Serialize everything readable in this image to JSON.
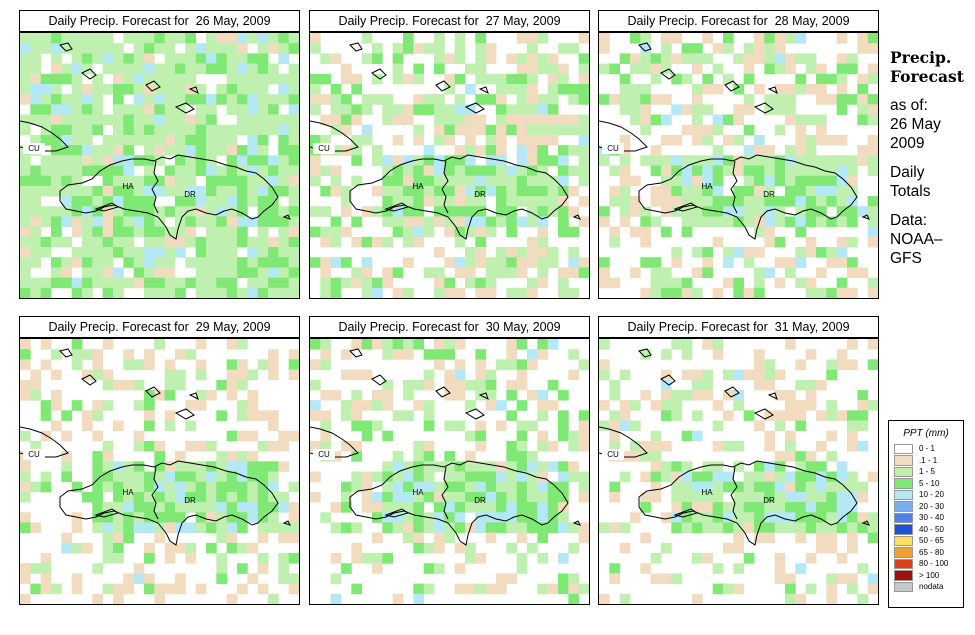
{
  "panels": [
    {
      "title": "Daily Precip. Forecast for  26 May, 2009"
    },
    {
      "title": "Daily Precip. Forecast for  27 May, 2009"
    },
    {
      "title": "Daily Precip. Forecast for  28 May, 2009"
    },
    {
      "title": "Daily Precip. Forecast for  29 May, 2009"
    },
    {
      "title": "Daily Precip. Forecast for  30 May, 2009"
    },
    {
      "title": "Daily Precip. Forecast for  31 May, 2009"
    }
  ],
  "map_labels": {
    "cuba": "CU",
    "haiti": "HA",
    "dominican_republic": "DR"
  },
  "side": {
    "title_line1": "Precip.",
    "title_line2": "Forecast",
    "asof_line1": "as of:",
    "asof_line2": "26 May",
    "asof_line3": "2009",
    "totals_line1": "Daily",
    "totals_line2": "Totals",
    "data_line1": "Data:",
    "data_line2": "NOAA–",
    "data_line3": "GFS"
  },
  "legend": {
    "title": "PPT (mm)",
    "entries": [
      {
        "label": "0 - 1",
        "color": "#ffffff"
      },
      {
        "label": ".1 - 1",
        "color": "#f2dcc0"
      },
      {
        "label": "1 - 5",
        "color": "#bff0b0"
      },
      {
        "label": "5 - 10",
        "color": "#80e874"
      },
      {
        "label": "10 - 20",
        "color": "#b4e8f4"
      },
      {
        "label": "20 - 30",
        "color": "#78aef0"
      },
      {
        "label": "30 - 40",
        "color": "#4a84e8"
      },
      {
        "label": "40 - 50",
        "color": "#1e50d8"
      },
      {
        "label": "50 - 65",
        "color": "#f8e060"
      },
      {
        "label": "65 - 80",
        "color": "#f0a030"
      },
      {
        "label": "80 - 100",
        "color": "#e04018"
      },
      {
        "label": "> 100",
        "color": "#a01010"
      },
      {
        "label": "nodata",
        "color": "#c8c8c8"
      }
    ]
  }
}
